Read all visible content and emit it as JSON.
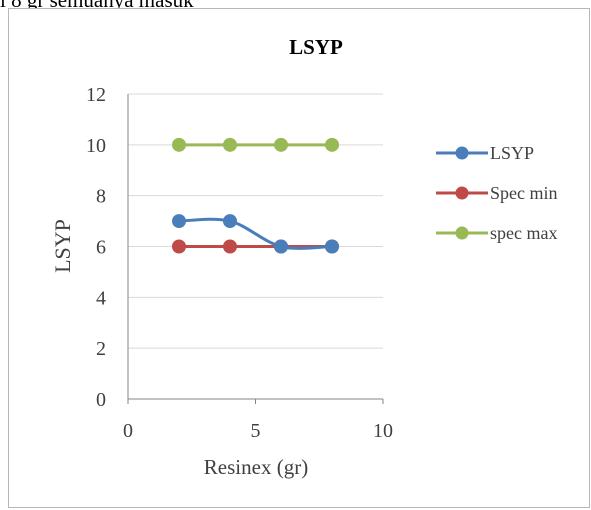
{
  "document": {
    "text_above_chart": "i 8 gr semuanya masuk"
  },
  "chart_data": {
    "type": "scatter",
    "title": "LSYP",
    "xlabel": "Resinex (gr)",
    "ylabel": "LSYP",
    "xlim": [
      0,
      10
    ],
    "ylim": [
      0,
      12
    ],
    "x_ticks": [
      0,
      5,
      10
    ],
    "y_ticks": [
      0,
      2,
      4,
      6,
      8,
      10,
      12
    ],
    "grid": "horizontal major gridlines",
    "legend_position": "right",
    "series": [
      {
        "name": "LSYP",
        "color": "#4a7ebb",
        "smooth": true,
        "points": [
          {
            "x": 2,
            "y": 7
          },
          {
            "x": 4,
            "y": 7
          },
          {
            "x": 6,
            "y": 6
          },
          {
            "x": 8,
            "y": 6
          }
        ]
      },
      {
        "name": "Spec min",
        "color": "#be4b48",
        "smooth": true,
        "points": [
          {
            "x": 2,
            "y": 6
          },
          {
            "x": 4,
            "y": 6
          },
          {
            "x": 6,
            "y": 6
          },
          {
            "x": 8,
            "y": 6
          }
        ]
      },
      {
        "name": "spec max",
        "color": "#98b954",
        "smooth": true,
        "points": [
          {
            "x": 2,
            "y": 10
          },
          {
            "x": 4,
            "y": 10
          },
          {
            "x": 6,
            "y": 10
          },
          {
            "x": 8,
            "y": 10
          }
        ]
      }
    ]
  }
}
